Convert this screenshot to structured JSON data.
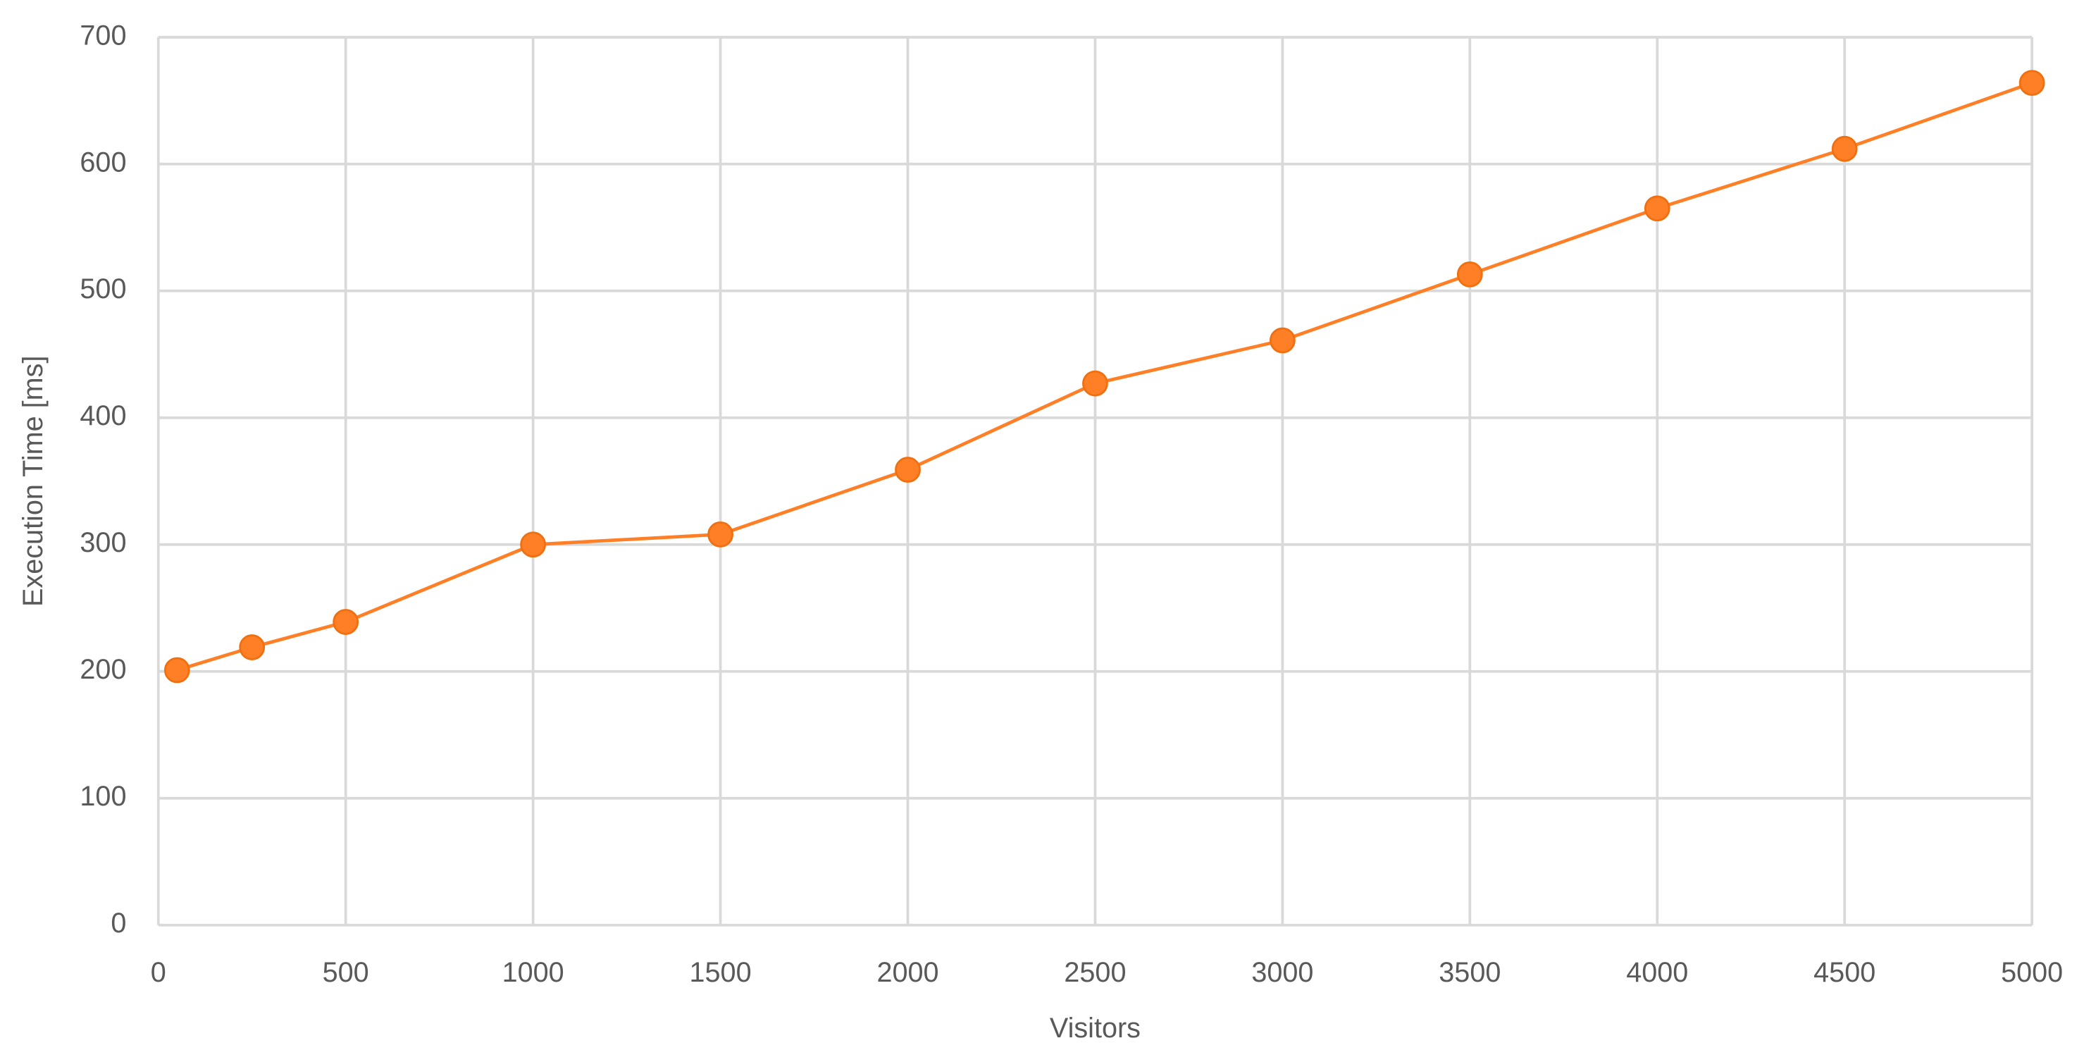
{
  "chart_data": {
    "type": "line",
    "x": [
      50,
      250,
      500,
      1000,
      1500,
      2000,
      2500,
      3000,
      3500,
      4000,
      4500,
      5000
    ],
    "series": [
      {
        "color": "#ff7f27",
        "values": [
          201,
          219,
          239,
          300,
          308,
          359,
          427,
          461,
          513,
          565,
          612,
          664
        ]
      }
    ],
    "xlim": [
      0,
      5000
    ],
    "xticks": [
      0,
      500,
      1000,
      1500,
      2000,
      2500,
      3000,
      3500,
      4000,
      4500,
      5000
    ],
    "ylim": [
      0,
      700
    ],
    "yticks": [
      0,
      100,
      200,
      300,
      400,
      500,
      600,
      700
    ],
    "xlabel": "Visitors",
    "ylabel": "Execution Time [ms]",
    "grid": true,
    "markers": true
  }
}
